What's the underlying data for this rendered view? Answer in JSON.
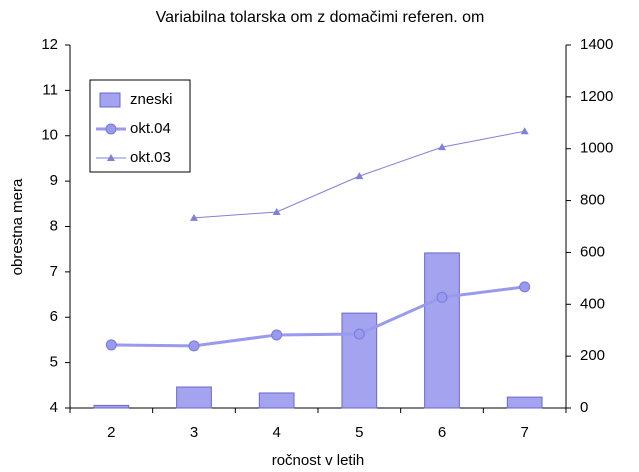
{
  "chart_data": {
    "type": "bar_line",
    "title": "Variabilna tolarska om z domačimi referen. om",
    "categories": [
      "2",
      "3",
      "4",
      "5",
      "6",
      "7"
    ],
    "series": [
      {
        "name": "zneski",
        "type": "bar",
        "axis": "y2",
        "color": "#a3a3f0",
        "values": [
          10,
          81,
          58,
          366,
          598,
          42
        ]
      },
      {
        "name": "okt.04",
        "type": "line",
        "color": "#9999ee",
        "values": [
          5.39,
          5.37,
          5.61,
          5.63,
          6.44,
          6.67
        ]
      },
      {
        "name": "okt.03",
        "type": "line",
        "color": "#8080d8",
        "values": [
          null,
          8.19,
          8.32,
          9.11,
          9.75,
          10.1
        ]
      }
    ],
    "ylim": [
      4,
      12
    ],
    "yticks": [
      4,
      5,
      6,
      7,
      8,
      9,
      10,
      11,
      12
    ],
    "y2lim": [
      0,
      1400
    ],
    "y2ticks": [
      0,
      200,
      400,
      600,
      800,
      1000,
      1200,
      1400
    ],
    "xlabel": "ročnost v letih",
    "ylabel": "obrestna mera",
    "legend": "upper left"
  }
}
